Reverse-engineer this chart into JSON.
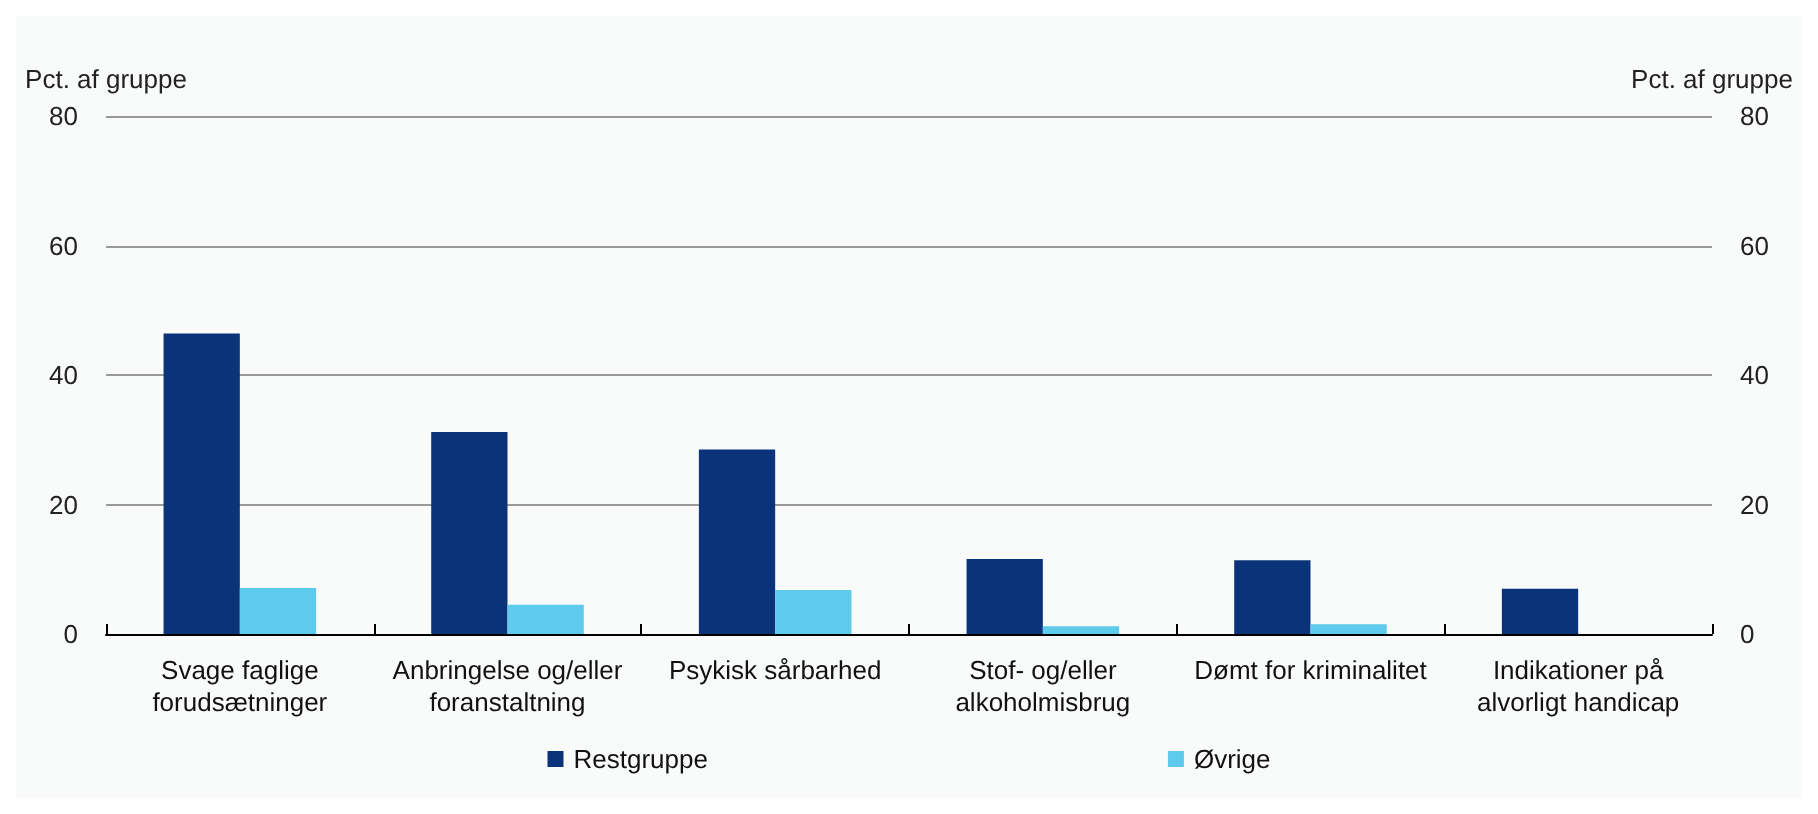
{
  "chart_data": {
    "type": "bar",
    "ylabel": "Pct. af gruppe",
    "y2label": "Pct. af gruppe",
    "categories": [
      "Svage faglige\nforudsætninger",
      "Anbringelse og/eller\nforanstaltning",
      "Psykisk sårbarhed",
      "Stof- og/eller\nalkoholmisbrug",
      "Dømt for kriminalitet",
      "Indikationer på\nalvorligt handicap"
    ],
    "series": [
      {
        "name": "Restgruppe",
        "color": "#0a337a",
        "values": [
          46.4,
          31.2,
          28.5,
          11.6,
          11.4,
          7.0
        ]
      },
      {
        "name": "Øvrige",
        "color": "#5ecbec",
        "values": [
          7.1,
          4.5,
          6.8,
          1.2,
          1.5,
          0
        ]
      }
    ],
    "ylim": [
      0,
      80
    ],
    "yticks": [
      0,
      20,
      40,
      60,
      80
    ],
    "y2lim": [
      0,
      80
    ],
    "y2ticks": [
      0,
      20,
      40,
      60,
      80
    ],
    "grid": "y",
    "legend": "bottom"
  }
}
